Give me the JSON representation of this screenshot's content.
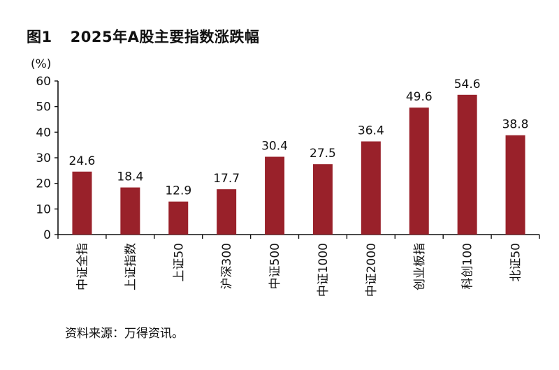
{
  "figure": {
    "label": "图1",
    "title": "2025年A股主要指数涨跌幅",
    "source": "资料来源：万得资讯。"
  },
  "chart_data": {
    "type": "bar",
    "title": "2025年A股主要指数涨跌幅",
    "ylabel": "(%)",
    "xlabel": "",
    "ylim": [
      0,
      60
    ],
    "yticks": [
      0,
      10,
      20,
      30,
      40,
      50,
      60
    ],
    "grid": false,
    "bar_color": "#99212a",
    "categories": [
      "中证全指",
      "上证指数",
      "上证50",
      "沪深300",
      "中证500",
      "中证1000",
      "中证2000",
      "创业板指",
      "科创100",
      "北证50"
    ],
    "values": [
      24.6,
      18.4,
      12.9,
      17.7,
      30.4,
      27.5,
      36.4,
      49.6,
      54.6,
      38.8
    ],
    "value_labels": [
      "24.6",
      "18.4",
      "12.9",
      "17.7",
      "30.4",
      "27.5",
      "36.4",
      "49.6",
      "54.6",
      "38.8"
    ]
  }
}
